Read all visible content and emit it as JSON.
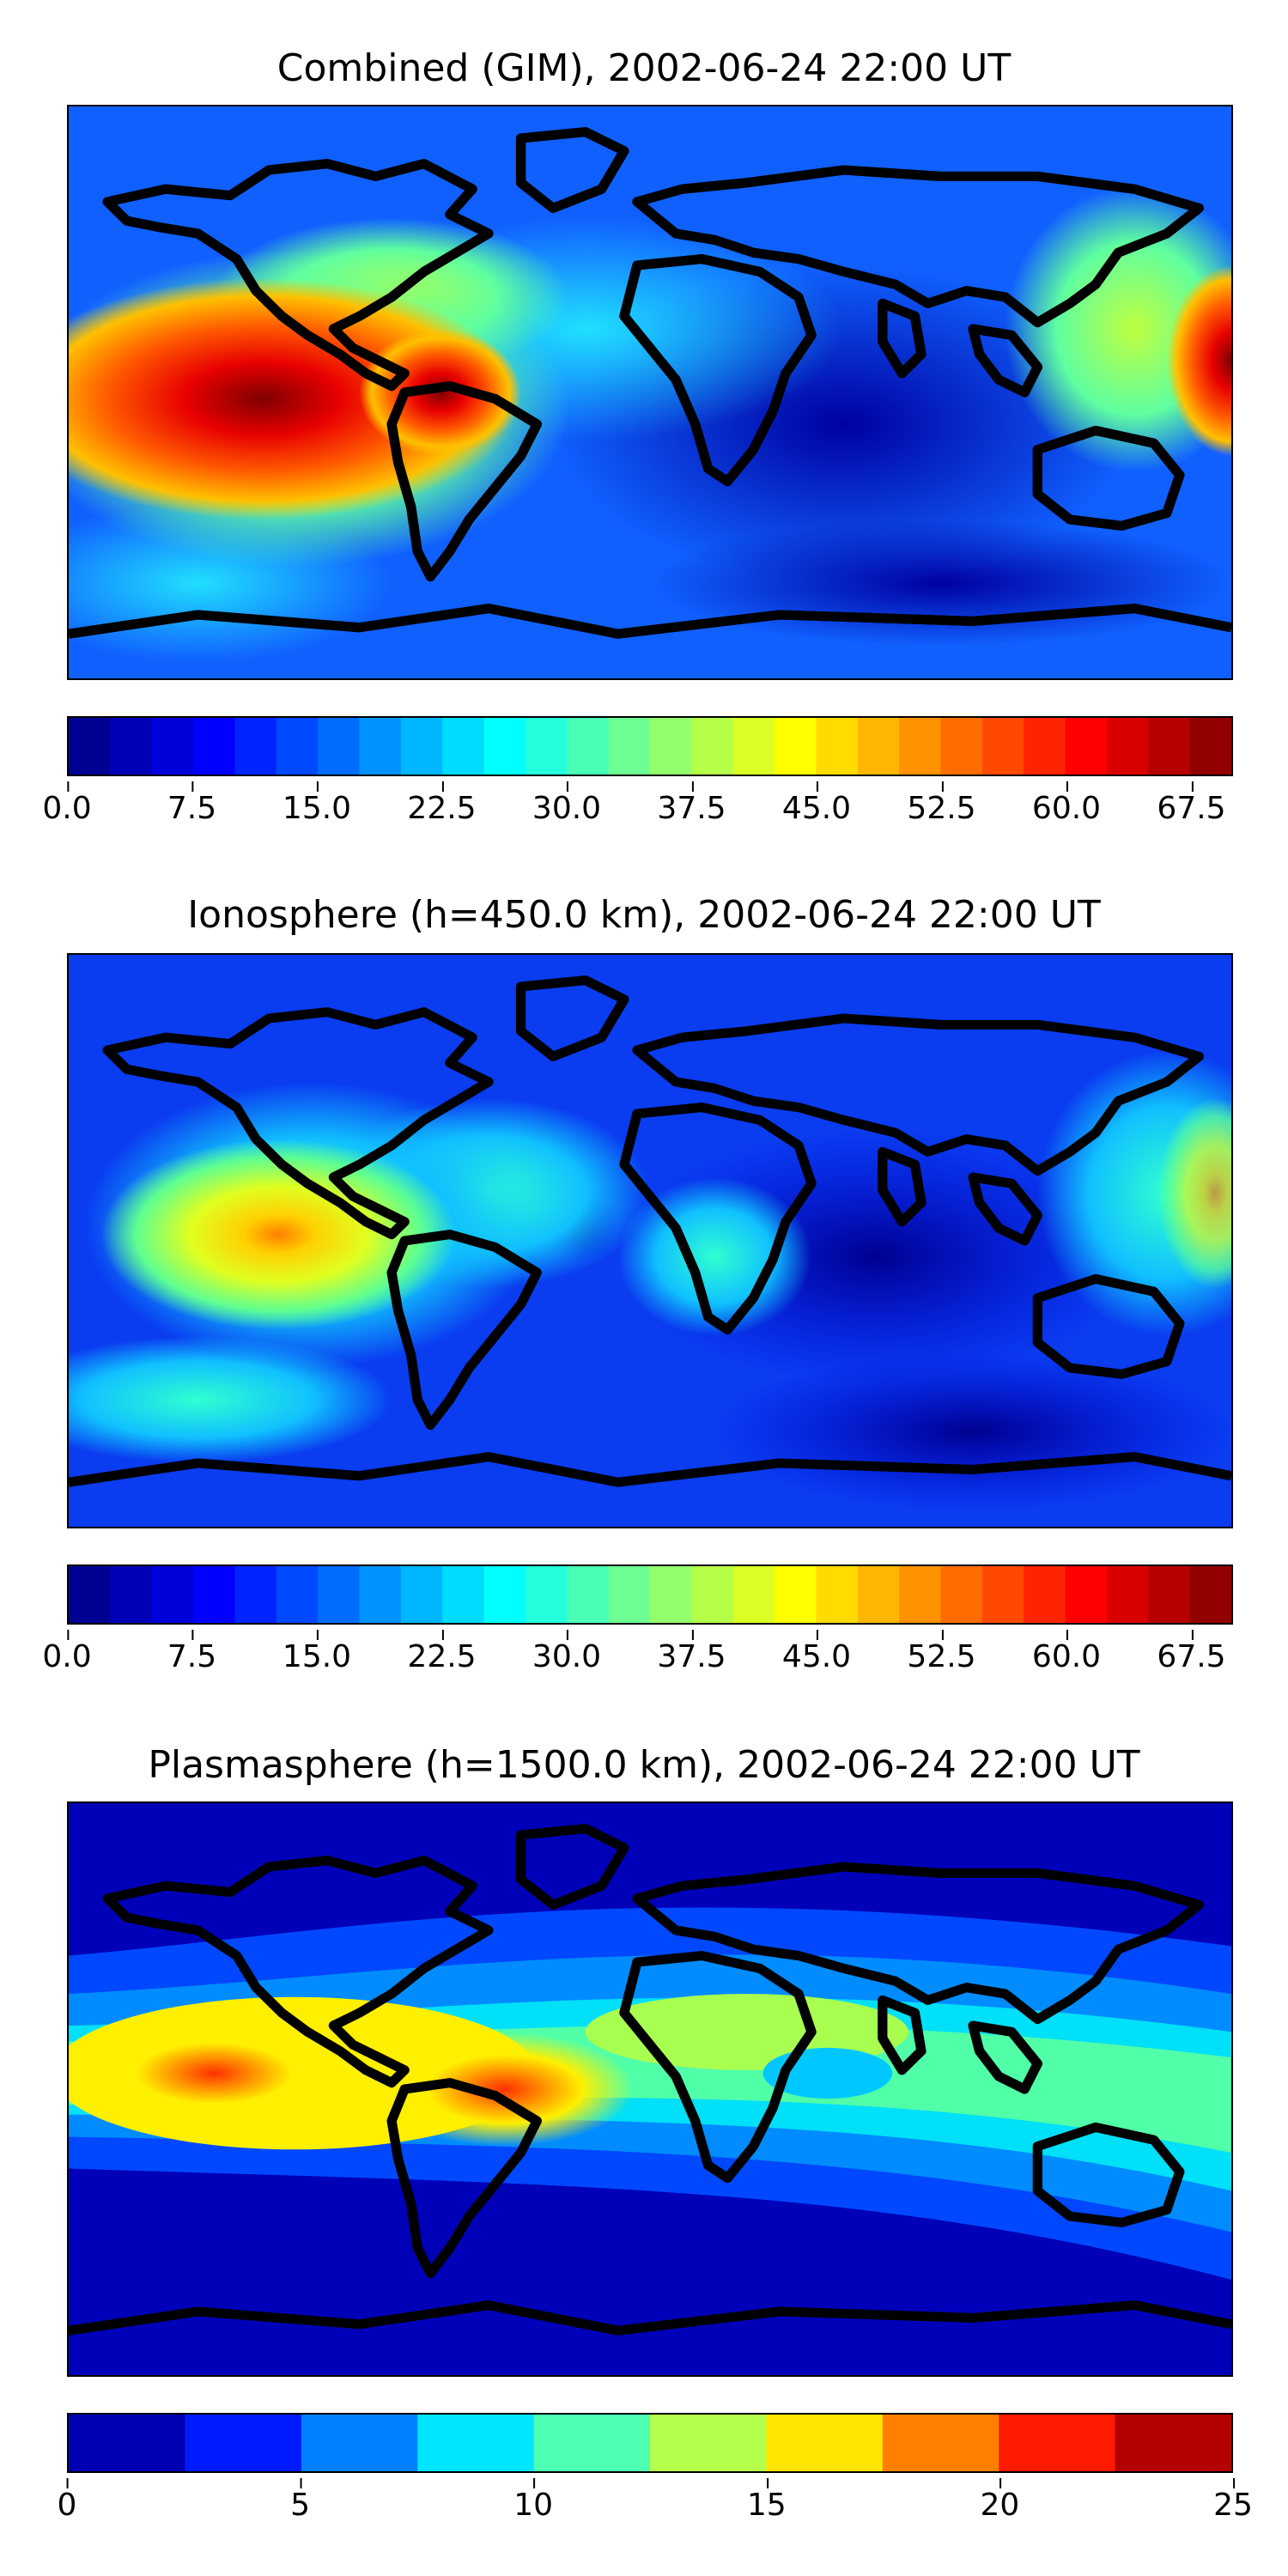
{
  "panels": [
    {
      "title": "Combined (GIM), 2002-06-24 22:00 UT",
      "colorbar": {
        "min": 0,
        "max": 70,
        "levels": 28,
        "tick_labels": [
          "0.0",
          "7.5",
          "15.0",
          "22.5",
          "30.0",
          "37.5",
          "45.0",
          "52.5",
          "60.0",
          "67.5"
        ],
        "tick_values": [
          0,
          7.5,
          15,
          22.5,
          30,
          37.5,
          45,
          52.5,
          60,
          67.5
        ]
      },
      "colormap": "jet"
    },
    {
      "title": "Ionosphere  (h=450.0 km), 2002-06-24 22:00 UT",
      "colorbar": {
        "min": 0,
        "max": 70,
        "levels": 28,
        "tick_labels": [
          "0.0",
          "7.5",
          "15.0",
          "22.5",
          "30.0",
          "37.5",
          "45.0",
          "52.5",
          "60.0",
          "67.5"
        ],
        "tick_values": [
          0,
          7.5,
          15,
          22.5,
          30,
          37.5,
          45,
          52.5,
          60,
          67.5
        ]
      },
      "colormap": "jet"
    },
    {
      "title": "Plasmasphere (h=1500.0 km), 2002-06-24 22:00 UT",
      "colorbar": {
        "min": 0,
        "max": 25,
        "levels": 10,
        "tick_labels": [
          "0",
          "5",
          "10",
          "15",
          "20",
          "25"
        ],
        "tick_values": [
          0,
          5,
          10,
          15,
          20,
          25
        ]
      },
      "colormap": "jet"
    }
  ]
}
